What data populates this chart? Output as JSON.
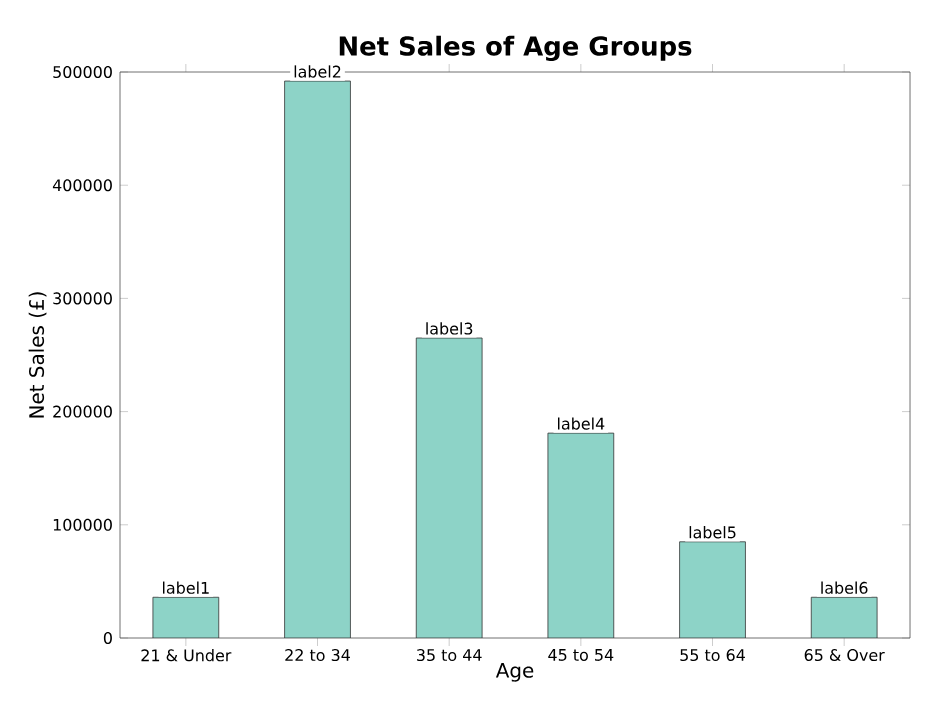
{
  "chart_data": {
    "type": "bar",
    "title": "Net Sales of Age Groups",
    "xlabel": "Age",
    "ylabel": "Net Sales (£)",
    "categories": [
      "21 & Under",
      "22 to 34",
      "35 to 44",
      "45 to 54",
      "55 to 64",
      "65 & Over"
    ],
    "values": [
      36000,
      492000,
      265000,
      181000,
      85000,
      36000
    ],
    "value_labels": [
      "label1",
      "label2",
      "label3",
      "label4",
      "label5",
      "label6"
    ],
    "color": "#8dd3c7",
    "ylim": [
      0,
      500000
    ],
    "yticks": [
      0,
      100000,
      200000,
      300000,
      400000,
      500000
    ],
    "grid": false
  }
}
